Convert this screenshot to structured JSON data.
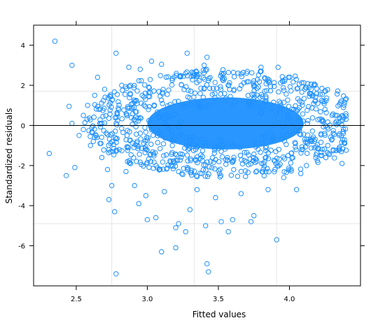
{
  "chart_data": {
    "type": "scatter",
    "xlabel": "Fitted values",
    "ylabel": "Standardized residuals",
    "xlim": [
      2.2,
      4.5
    ],
    "ylim": [
      -8.0,
      5.0
    ],
    "x_ticks": [
      2.5,
      3.0,
      3.5,
      4.0
    ],
    "x_tick_labels": [
      "2.5",
      "3.0",
      "3.5",
      "4.0"
    ],
    "y_ticks": [
      -6,
      -4,
      -2,
      0,
      2,
      4
    ],
    "y_tick_labels": [
      "-6",
      "-4",
      "-2",
      "0",
      "2",
      "4"
    ],
    "reference_line_y": 0,
    "grid_x": [
      2.75,
      3.33,
      3.91
    ],
    "grid_y": [
      -4.9,
      1.7
    ],
    "grid": true,
    "marker": "open-circle",
    "colors": {
      "point": "#1e90ff",
      "reference": "#000000",
      "grid": "#e6e6e6",
      "frame": "#000000"
    },
    "dense_core": {
      "description_free": true,
      "center": [
        3.55,
        0.1
      ],
      "x_spread": 0.55,
      "y_spread": 1.3
    },
    "outliers": [
      [
        2.35,
        4.2
      ],
      [
        2.47,
        3.0
      ],
      [
        2.78,
        3.6
      ],
      [
        2.45,
        0.95
      ],
      [
        2.47,
        0.1
      ],
      [
        2.55,
        -0.2
      ],
      [
        2.61,
        -0.1
      ],
      [
        2.62,
        -0.8
      ],
      [
        2.31,
        -1.4
      ],
      [
        2.49,
        -2.1
      ],
      [
        2.43,
        -2.5
      ],
      [
        2.68,
        -1.6
      ],
      [
        2.72,
        -2.2
      ],
      [
        2.75,
        -3.0
      ],
      [
        2.73,
        -3.7
      ],
      [
        2.77,
        -4.3
      ],
      [
        2.78,
        -7.4
      ],
      [
        2.85,
        -2.3
      ],
      [
        2.91,
        -3.0
      ],
      [
        2.94,
        -3.9
      ],
      [
        3.0,
        -4.7
      ],
      [
        3.06,
        -4.6
      ],
      [
        3.1,
        -6.3
      ],
      [
        3.2,
        -6.1
      ],
      [
        3.2,
        -5.1
      ],
      [
        3.27,
        -5.3
      ],
      [
        3.22,
        -4.9
      ],
      [
        3.3,
        -4.2
      ],
      [
        3.42,
        -6.9
      ],
      [
        3.43,
        -7.3
      ],
      [
        3.41,
        -5.0
      ],
      [
        3.52,
        -4.8
      ],
      [
        3.57,
        -5.3
      ],
      [
        3.6,
        -4.7
      ],
      [
        3.75,
        -4.5
      ],
      [
        3.73,
        -4.8
      ],
      [
        3.91,
        -5.7
      ],
      [
        3.85,
        -3.2
      ],
      [
        3.96,
        -2.6
      ],
      [
        4.05,
        -3.2
      ],
      [
        3.03,
        3.2
      ],
      [
        3.28,
        3.6
      ],
      [
        3.42,
        3.4
      ],
      [
        3.4,
        3.0
      ],
      [
        3.1,
        3.05
      ],
      [
        3.92,
        2.9
      ],
      [
        3.8,
        2.9
      ],
      [
        4.18,
        1.2
      ],
      [
        4.3,
        0.5
      ],
      [
        4.33,
        0.2
      ],
      [
        4.35,
        -0.5
      ],
      [
        4.37,
        -1.9
      ],
      [
        4.38,
        -0.2
      ],
      [
        4.27,
        -1.0
      ],
      [
        4.22,
        -1.5
      ],
      [
        4.08,
        -2.4
      ],
      [
        2.63,
        1.5
      ],
      [
        2.58,
        1.0
      ],
      [
        2.7,
        1.8
      ],
      [
        2.65,
        2.4
      ],
      [
        2.82,
        2.0
      ],
      [
        2.55,
        0.5
      ],
      [
        2.52,
        -0.5
      ],
      [
        2.66,
        0.8
      ],
      [
        2.6,
        -1.0
      ],
      [
        2.87,
        2.9
      ],
      [
        2.95,
        2.8
      ],
      [
        4.2,
        1.1
      ],
      [
        4.25,
        0.8
      ],
      [
        4.12,
        -2.0
      ],
      [
        3.12,
        -3.3
      ],
      [
        3.35,
        -3.2
      ],
      [
        3.66,
        -3.4
      ],
      [
        3.48,
        -3.6
      ],
      [
        2.99,
        -3.5
      ]
    ]
  }
}
